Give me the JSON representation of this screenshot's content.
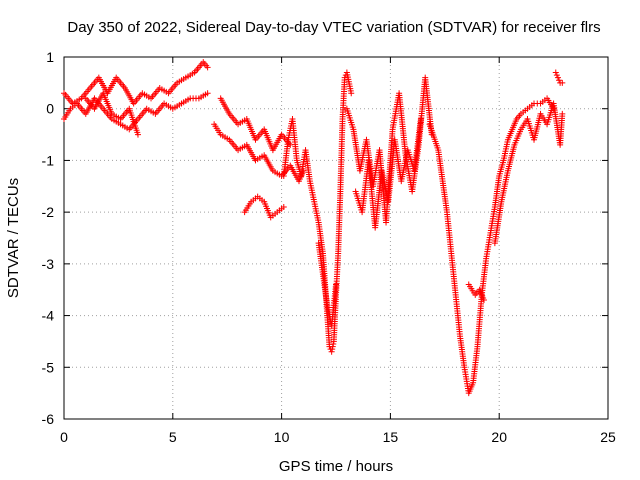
{
  "chart_data": {
    "type": "scatter",
    "title": "Day 350 of 2022, Sidereal Day-to-day VTEC variation (SDTVAR) for receiver flrs",
    "xlabel": "GPS time / hours",
    "ylabel": "SDTVAR / TECUs",
    "xlim": [
      0,
      25
    ],
    "ylim": [
      -6,
      1
    ],
    "xticks": [
      "0",
      "5",
      "10",
      "15",
      "20",
      "25"
    ],
    "yticks": [
      "1",
      "0",
      "-1",
      "-2",
      "-3",
      "-4",
      "-5",
      "-6"
    ],
    "grid": true,
    "marker": "+",
    "color": "#ff0000",
    "series": [
      {
        "x": [
          0.0,
          0.4,
          0.8,
          1.2,
          1.6,
          2.0,
          2.4,
          2.8,
          3.2,
          3.6,
          4.0,
          4.4,
          4.8,
          5.2,
          5.6,
          6.0,
          6.4,
          6.6
        ],
        "y": [
          0.3,
          0.1,
          0.2,
          0.4,
          0.6,
          0.3,
          0.6,
          0.4,
          0.1,
          0.3,
          0.2,
          0.4,
          0.3,
          0.5,
          0.6,
          0.7,
          0.9,
          0.8
        ]
      },
      {
        "x": [
          0.0,
          0.3,
          0.6,
          1.0,
          1.4,
          1.8,
          2.2,
          2.6,
          3.0,
          3.4,
          3.8,
          4.2,
          4.6,
          5.0,
          5.4,
          5.8,
          6.2,
          6.6
        ],
        "y": [
          -0.2,
          0.0,
          0.1,
          -0.1,
          0.2,
          0.0,
          -0.2,
          -0.3,
          -0.4,
          -0.2,
          0.0,
          -0.1,
          0.1,
          0.0,
          0.1,
          0.2,
          0.2,
          0.3
        ]
      },
      {
        "x": [
          1.0,
          1.4,
          1.8,
          2.2,
          2.6,
          3.0,
          3.4
        ],
        "y": [
          0.2,
          0.0,
          0.3,
          -0.1,
          -0.2,
          0.0,
          -0.5
        ]
      },
      {
        "x": [
          6.9,
          7.2,
          7.6,
          8.0,
          8.4,
          8.8,
          9.2,
          9.6,
          10.0,
          10.4,
          10.8,
          11.0
        ],
        "y": [
          -0.3,
          -0.5,
          -0.6,
          -0.8,
          -0.7,
          -1.0,
          -0.9,
          -1.2,
          -1.3,
          -1.1,
          -1.4,
          -1.2
        ]
      },
      {
        "x": [
          7.2,
          7.6,
          8.0,
          8.4,
          8.8,
          9.2,
          9.6,
          10.0,
          10.4
        ],
        "y": [
          0.2,
          -0.1,
          -0.3,
          -0.2,
          -0.6,
          -0.4,
          -0.8,
          -0.5,
          -0.7
        ]
      },
      {
        "x": [
          8.3,
          8.6,
          8.9,
          9.2,
          9.5,
          9.8,
          10.1
        ],
        "y": [
          -2.0,
          -1.8,
          -1.7,
          -1.8,
          -2.1,
          -2.0,
          -1.9
        ]
      },
      {
        "x": [
          10.1,
          10.3,
          10.5,
          10.7,
          10.9,
          11.1,
          11.3,
          11.5,
          11.7,
          11.9,
          12.0,
          12.1,
          12.2,
          12.3,
          12.4,
          12.5,
          12.6,
          12.7,
          12.8,
          12.9,
          13.0,
          13.2
        ],
        "y": [
          -1.3,
          -0.6,
          -0.2,
          -1.0,
          -1.3,
          -0.8,
          -1.4,
          -1.8,
          -2.2,
          -2.8,
          -3.4,
          -4.0,
          -4.6,
          -4.7,
          -4.5,
          -3.6,
          -2.8,
          -1.6,
          -0.2,
          0.6,
          0.7,
          0.3
        ]
      },
      {
        "x": [
          11.7,
          11.9,
          12.1,
          12.3,
          12.5
        ],
        "y": [
          -2.6,
          -3.2,
          -3.8,
          -4.2,
          -3.4
        ]
      },
      {
        "x": [
          13.0,
          13.3,
          13.6,
          13.9,
          14.2,
          14.5,
          14.8,
          15.1,
          15.4,
          15.7,
          16.0,
          16.3,
          16.6,
          16.9
        ],
        "y": [
          0.0,
          -0.4,
          -1.2,
          -0.6,
          -1.5,
          -0.8,
          -2.2,
          -0.4,
          0.3,
          -0.9,
          -1.6,
          -0.7,
          0.6,
          -0.5
        ]
      },
      {
        "x": [
          13.4,
          13.7,
          14.0,
          14.3,
          14.6,
          14.9,
          15.2,
          15.5,
          15.8,
          16.1,
          16.4
        ],
        "y": [
          -1.6,
          -2.0,
          -1.0,
          -2.3,
          -1.2,
          -1.8,
          -0.6,
          -1.4,
          -0.8,
          -1.2,
          -0.2
        ]
      },
      {
        "x": [
          16.8,
          17.2,
          17.6,
          17.8,
          18.0,
          18.2,
          18.4,
          18.6,
          18.8,
          19.0,
          19.2,
          19.4,
          19.6,
          19.8,
          20.0,
          20.2,
          20.4,
          20.6,
          20.8,
          21.0,
          21.3,
          21.6,
          21.9,
          22.2,
          22.5
        ],
        "y": [
          -0.3,
          -0.8,
          -2.0,
          -2.8,
          -3.6,
          -4.4,
          -5.0,
          -5.5,
          -5.3,
          -4.6,
          -3.6,
          -2.9,
          -2.4,
          -1.9,
          -1.3,
          -1.0,
          -0.6,
          -0.4,
          -0.2,
          -0.1,
          0.0,
          0.1,
          0.1,
          0.2,
          0.0
        ]
      },
      {
        "x": [
          18.6,
          18.9,
          19.1,
          19.3
        ],
        "y": [
          -3.4,
          -3.6,
          -3.5,
          -3.7
        ]
      },
      {
        "x": [
          19.8,
          20.1,
          20.4,
          20.7,
          21.0,
          21.3,
          21.6,
          21.9,
          22.2,
          22.5,
          22.8,
          22.9
        ],
        "y": [
          -2.6,
          -1.8,
          -1.2,
          -0.7,
          -0.4,
          -0.2,
          -0.6,
          -0.1,
          -0.3,
          0.1,
          -0.7,
          -0.1
        ]
      },
      {
        "x": [
          22.6,
          22.7,
          22.8,
          22.9
        ],
        "y": [
          0.7,
          0.6,
          0.5,
          0.5
        ]
      }
    ]
  }
}
